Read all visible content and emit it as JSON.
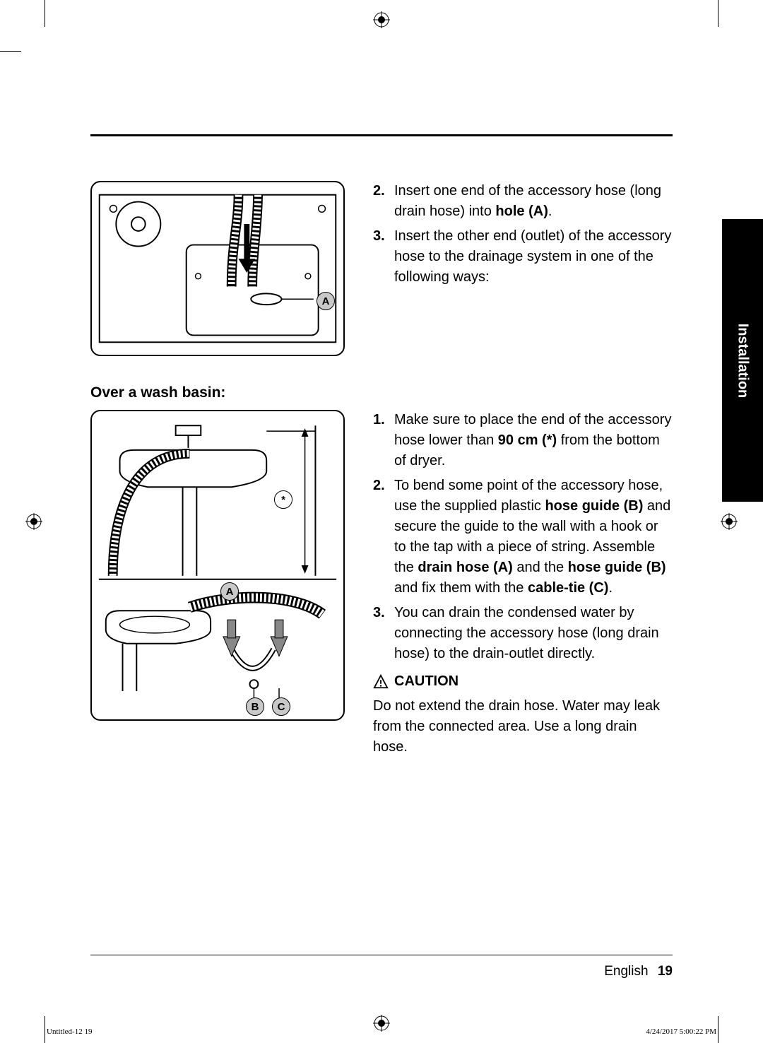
{
  "side_tab": "Installation",
  "section1": {
    "steps": [
      {
        "num": "2.",
        "text_before": "Insert one end of the accessory hose (long drain hose) into ",
        "bold": "hole (A)",
        "text_after": "."
      },
      {
        "num": "3.",
        "text_before": "Insert the other end (outlet) of the accessory hose to the drainage system in one of the following ways:",
        "bold": "",
        "text_after": ""
      }
    ],
    "labels": {
      "a": "A"
    }
  },
  "subheading": "Over a wash basin:",
  "section2": {
    "steps": [
      {
        "num": "1.",
        "html": "Make sure to place the end of the accessory hose lower than <b>90 cm (*)</b> from the bottom of dryer."
      },
      {
        "num": "2.",
        "html": "To bend some point of the accessory hose, use the supplied plastic <b>hose guide (B)</b> and secure the guide to the wall with a hook or to the tap with a piece of string. Assemble the <b>drain hose (A)</b> and the <b>hose guide (B)</b> and fix them with the <b>cable-tie (C)</b>."
      },
      {
        "num": "3.",
        "html": "You can drain the condensed water by connecting the accessory hose (long drain hose) to the drain-outlet directly."
      }
    ],
    "caution_label": "CAUTION",
    "caution_text": "Do not extend the drain hose. Water may leak from the connected area. Use a long drain hose.",
    "labels": {
      "a": "A",
      "b": "B",
      "c": "C",
      "star": "*"
    }
  },
  "footer": {
    "language": "English",
    "page": "19"
  },
  "meta": {
    "left": "Untitled-12   19",
    "right": "4/24/2017   5:00:22 PM"
  },
  "colors": {
    "page_bg": "#ffffff",
    "text": "#000000",
    "tab_bg": "#000000",
    "tab_text": "#ffffff",
    "rule": "#000000",
    "label_fill": "#c9c9c9"
  }
}
